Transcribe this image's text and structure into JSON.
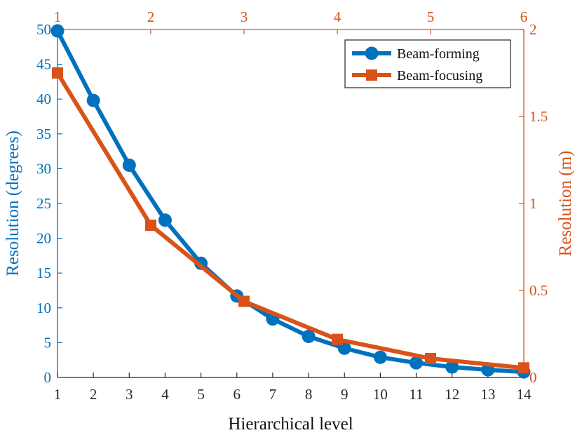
{
  "chart_data": {
    "type": "line",
    "title": "",
    "xlabel": "Hierarchical level",
    "x2label": "",
    "ylabel": "Resolution (degrees)",
    "y2label": "Resolution (m)",
    "xlim": [
      1,
      14
    ],
    "x2lim": [
      1,
      6
    ],
    "ylim": [
      0,
      50
    ],
    "y2lim": [
      0,
      2
    ],
    "xticks": [
      "1",
      "2",
      "3",
      "4",
      "5",
      "6",
      "7",
      "8",
      "9",
      "10",
      "11",
      "12",
      "13",
      "14"
    ],
    "x2ticks": [
      "1",
      "2",
      "3",
      "4",
      "5",
      "6"
    ],
    "yticks": [
      "0",
      "5",
      "10",
      "15",
      "20",
      "25",
      "30",
      "35",
      "40",
      "45",
      "50"
    ],
    "y2ticks": [
      "0",
      "0.5",
      "1",
      "1.5",
      "2"
    ],
    "grid": false,
    "legend_position": "top-right",
    "colors": {
      "left": "#0072BD",
      "right": "#D95319"
    },
    "series": [
      {
        "name": "Beam-forming",
        "axes": "bottom-left",
        "marker": "circle",
        "color": "#0072BD",
        "x": [
          1,
          2,
          3,
          4,
          5,
          6,
          7,
          8,
          9,
          10,
          11,
          12,
          13,
          14
        ],
        "y": [
          49.8,
          39.8,
          30.5,
          22.6,
          16.4,
          11.7,
          8.4,
          5.9,
          4.2,
          2.9,
          2.1,
          1.5,
          1.1,
          0.8
        ]
      },
      {
        "name": "Beam-focusing",
        "axes": "top-right",
        "marker": "square",
        "color": "#D95319",
        "x": [
          1,
          2,
          3,
          4,
          5,
          6
        ],
        "y": [
          1.75,
          0.875,
          0.4375,
          0.219,
          0.109,
          0.055
        ]
      }
    ]
  }
}
